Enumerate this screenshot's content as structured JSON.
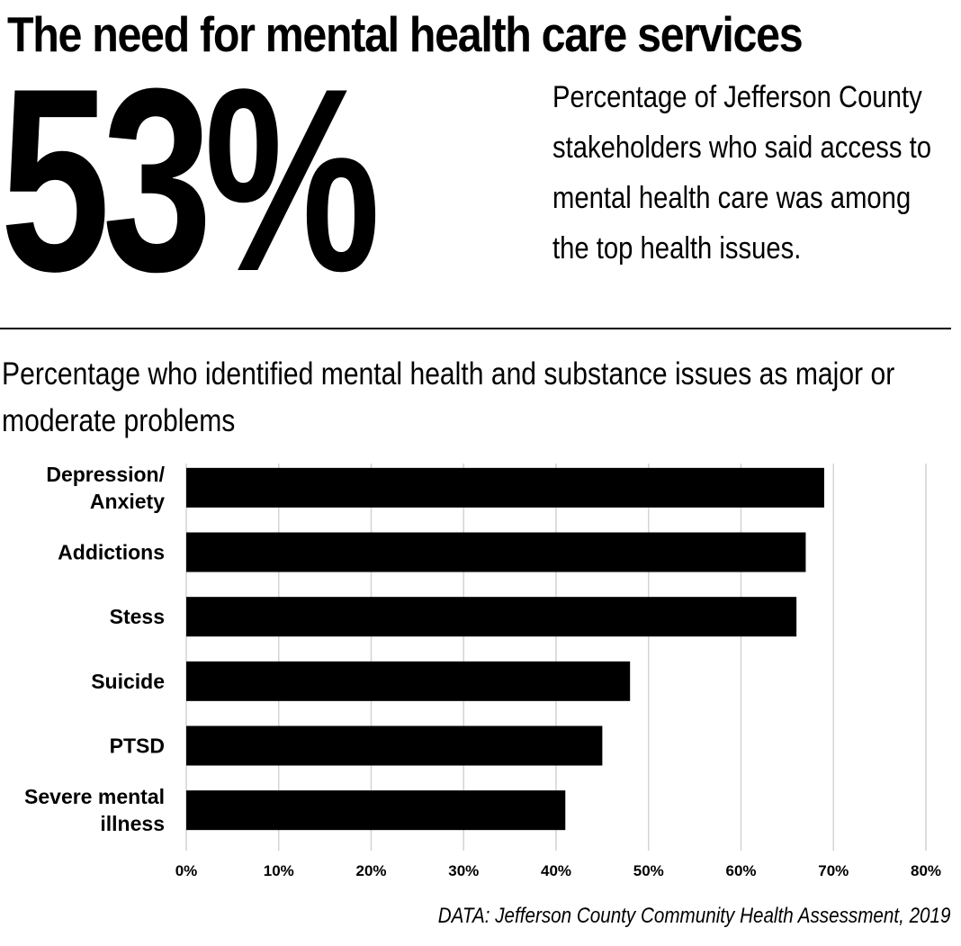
{
  "headline": "The need for mental health care services",
  "big_stat": {
    "value": "53%",
    "description": "Percentage of Jefferson County stakeholders who said access to mental health care was among the top health issues."
  },
  "chart_title": "Percentage who identified mental health and substance issues as major or moderate problems",
  "chart_data": {
    "type": "bar",
    "orientation": "horizontal",
    "categories": [
      "Depression/ Anxiety",
      "Addictions",
      "Stess",
      "Suicide",
      "PTSD",
      "Severe mental illness"
    ],
    "values": [
      69,
      67,
      66,
      48,
      45,
      41
    ],
    "unit": "%",
    "xlim": [
      0,
      80
    ],
    "xticks": [
      "0%",
      "10%",
      "20%",
      "30%",
      "40%",
      "50%",
      "60%",
      "70%",
      "80%"
    ],
    "grid": true,
    "legend": "none",
    "bar_color": "#000000",
    "grid_color": "#d4d4d4"
  },
  "source": "DATA: Jefferson County Community Health Assessment, 2019"
}
